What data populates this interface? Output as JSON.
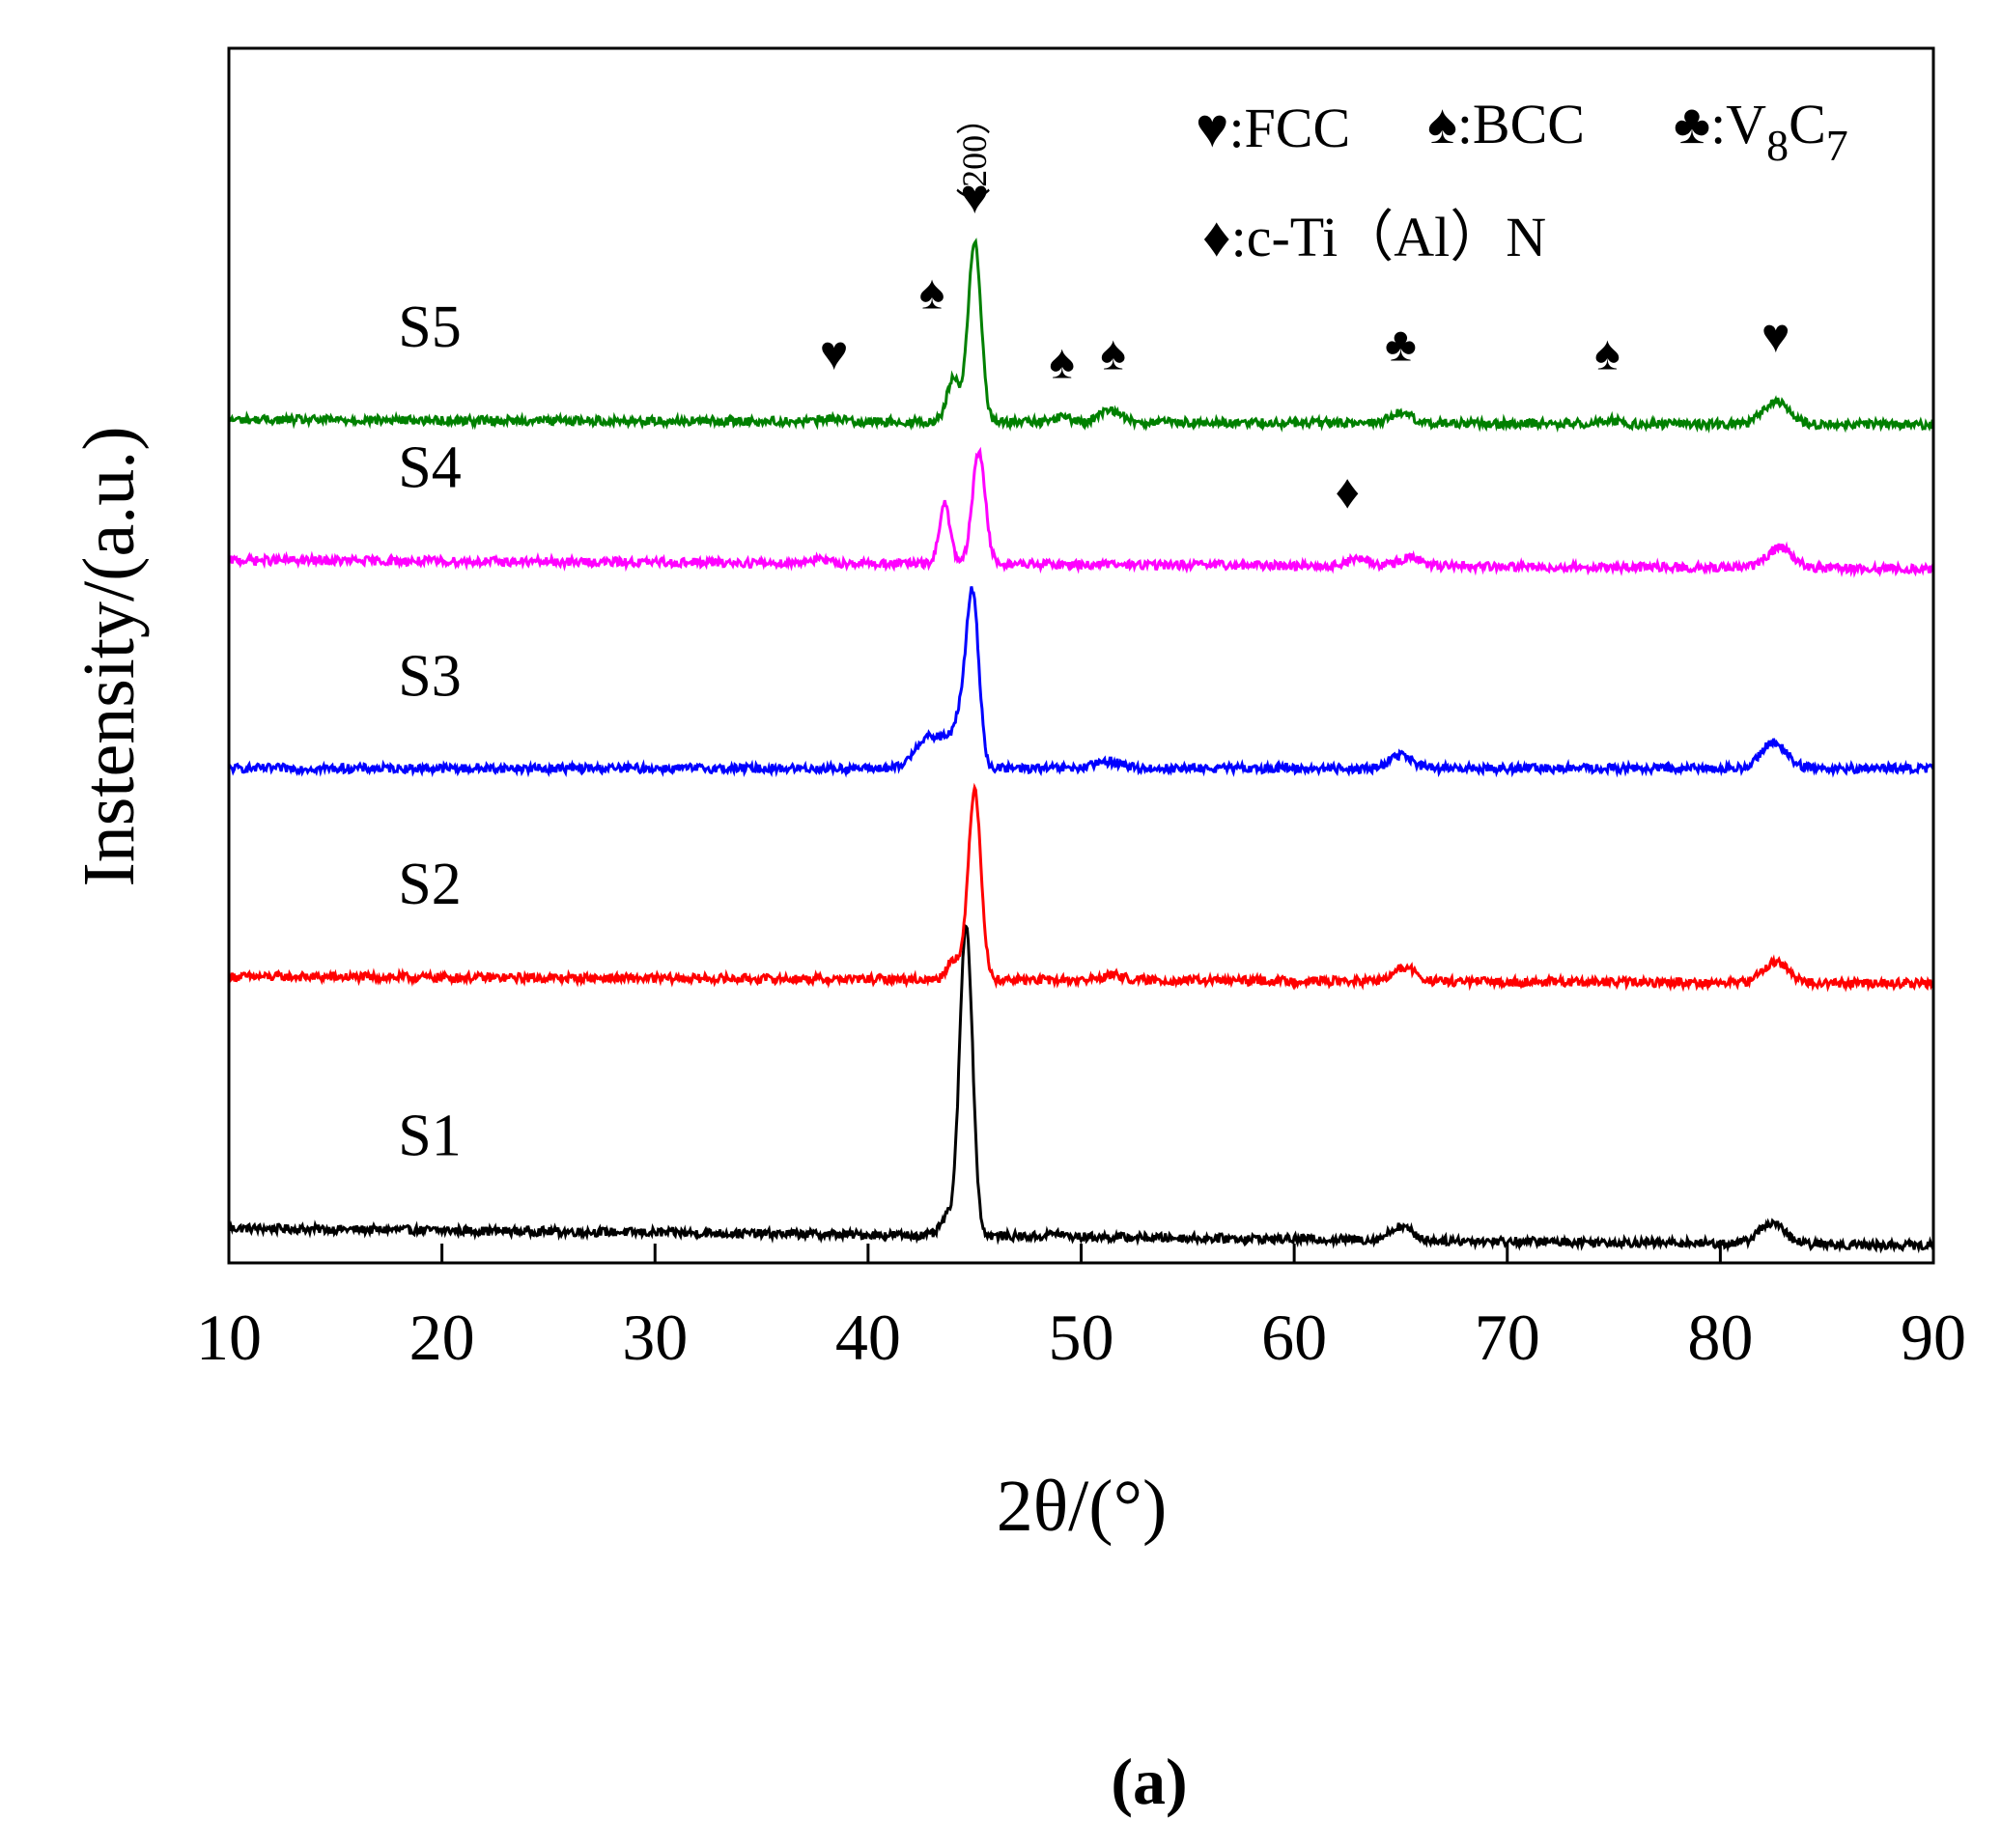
{
  "chart_data": {
    "type": "line",
    "title": "",
    "xlabel": "2θ/(°)",
    "ylabel": "Instensity/(a.u.)",
    "xlim": [
      10,
      90
    ],
    "ylim": [
      0,
      7
    ],
    "x_ticks": [
      "10",
      "20",
      "30",
      "40",
      "50",
      "60",
      "70",
      "80",
      "90"
    ],
    "y_ticks_shown": false,
    "caption": "(a)",
    "legend": {
      "position": "top-right",
      "entries": [
        {
          "symbol": "♥",
          "label": ":FCC"
        },
        {
          "symbol": "♠",
          "label": ":BCC"
        },
        {
          "symbol": "♣",
          "label": ":V",
          "sub1": "8",
          "label2": "C",
          "sub2": "7"
        },
        {
          "symbol": "♦",
          "label": ":c-Ti（Al）N"
        }
      ]
    },
    "series": [
      {
        "name": "S1",
        "color": "#000000",
        "baseline": 0.2,
        "tilt": -0.1,
        "peaks": [
          [
            43.7,
            0.1,
            0.3
          ],
          [
            44.6,
            1.8,
            0.3
          ],
          [
            48.8,
            0.02,
            0.3
          ],
          [
            65.0,
            0.08,
            0.5
          ],
          [
            82.4,
            0.12,
            0.6
          ]
        ]
      },
      {
        "name": "S2",
        "color": "#ff0000",
        "baseline": 1.65,
        "tilt": -0.04,
        "peaks": [
          [
            44.0,
            0.12,
            0.3
          ],
          [
            45.0,
            1.1,
            0.3
          ],
          [
            51.5,
            0.03,
            0.5
          ],
          [
            65.2,
            0.08,
            0.5
          ],
          [
            82.6,
            0.12,
            0.6
          ]
        ]
      },
      {
        "name": "S3",
        "color": "#0000ff",
        "baseline": 2.85,
        "tilt": 0.0,
        "peaks": [
          [
            42.6,
            0.15,
            0.5
          ],
          [
            43.6,
            0.15,
            0.5
          ],
          [
            44.3,
            0.2,
            0.3
          ],
          [
            44.9,
            1.0,
            0.3
          ],
          [
            51.3,
            0.04,
            0.6
          ],
          [
            65.0,
            0.08,
            0.5
          ],
          [
            82.5,
            0.15,
            0.6
          ]
        ]
      },
      {
        "name": "S4",
        "color": "#ff00ff",
        "baseline": 4.05,
        "tilt": -0.05,
        "peaks": [
          [
            37.5,
            0.02,
            0.5
          ],
          [
            43.6,
            0.35,
            0.25
          ],
          [
            45.2,
            0.65,
            0.3
          ],
          [
            63.0,
            0.04,
            0.5
          ],
          [
            65.4,
            0.05,
            0.5
          ],
          [
            82.8,
            0.12,
            0.6
          ]
        ]
      },
      {
        "name": "S5",
        "color": "#008000",
        "baseline": 4.86,
        "tilt": -0.03,
        "peaks": [
          [
            38.4,
            0.02,
            0.4
          ],
          [
            44.0,
            0.25,
            0.3
          ],
          [
            45.0,
            1.05,
            0.3
          ],
          [
            49.1,
            0.03,
            0.4
          ],
          [
            51.4,
            0.07,
            0.5
          ],
          [
            65.0,
            0.06,
            0.5
          ],
          [
            74.7,
            0.02,
            0.5
          ],
          [
            82.6,
            0.13,
            0.6
          ]
        ]
      }
    ],
    "annotations": [
      {
        "symbol": "♥",
        "x": 38.4,
        "y": 5.15
      },
      {
        "symbol": "♠",
        "x": 43.0,
        "y": 5.5
      },
      {
        "symbol": "♥",
        "x": 45.0,
        "y": 6.05
      },
      {
        "symbol": "♠",
        "x": 49.1,
        "y": 5.1
      },
      {
        "symbol": "♠",
        "x": 51.5,
        "y": 5.15
      },
      {
        "symbol": "♣",
        "x": 65.0,
        "y": 5.2
      },
      {
        "symbol": "♠",
        "x": 74.7,
        "y": 5.15
      },
      {
        "symbol": "♥",
        "x": 82.6,
        "y": 5.25
      },
      {
        "symbol": "♦",
        "x": 62.5,
        "y": 4.35
      }
    ],
    "hkl_label": {
      "text": "（200）",
      "x": 45.0,
      "y": 6.35
    }
  }
}
